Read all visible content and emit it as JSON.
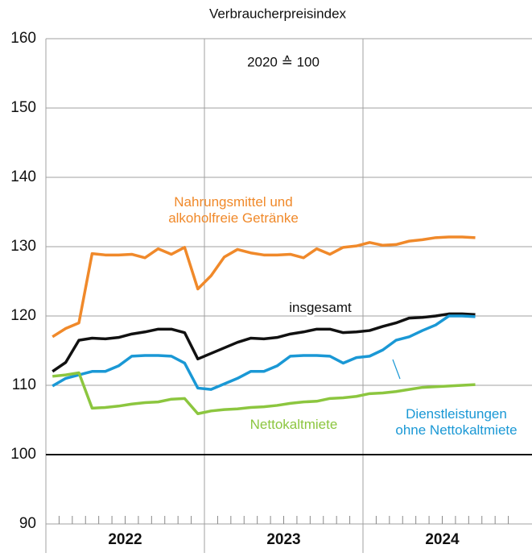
{
  "chart_data": {
    "type": "line",
    "title": "Verbraucherpreisindex",
    "annotation": "2020 ≙ 100",
    "categories": [
      null,
      null,
      null,
      null,
      null,
      null,
      null,
      null,
      null,
      null,
      null,
      null,
      null,
      null,
      null,
      null,
      null,
      null,
      null,
      null,
      null,
      null,
      null,
      null,
      null,
      null,
      null,
      null,
      null,
      null,
      null,
      null,
      null,
      null,
      null,
      null
    ],
    "x_groups": [
      "2022",
      "2023",
      "2024"
    ],
    "ylim": [
      90,
      160
    ],
    "yticks": [
      90,
      100,
      110,
      120,
      130,
      140,
      150,
      160
    ],
    "grid": true,
    "reference_line": 100,
    "series": [
      {
        "name": "Nahrungsmittel und\nalkoholfreie Getränke",
        "color": "#f0892a",
        "values": [
          117,
          118.2,
          119,
          129,
          128.8,
          128.8,
          128.9,
          128.4,
          129.7,
          128.9,
          129.9,
          123.9,
          125.8,
          128.5,
          129.6,
          129.1,
          128.8,
          128.8,
          128.9,
          128.4,
          129.7,
          128.9,
          129.9,
          130.1,
          130.6,
          130.2,
          130.3,
          130.8,
          131,
          131.3,
          131.4,
          131.4,
          131.3,
          null,
          null,
          null
        ]
      },
      {
        "name": "insgesamt",
        "color": "#111111",
        "values": [
          112,
          113.3,
          116.5,
          116.8,
          116.7,
          116.9,
          117.4,
          117.7,
          118.1,
          118.1,
          117.6,
          113.8,
          114.6,
          115.4,
          116.2,
          116.8,
          116.7,
          116.9,
          117.4,
          117.7,
          118.1,
          118.1,
          117.6,
          117.7,
          117.9,
          118.5,
          119,
          119.7,
          119.8,
          120,
          120.3,
          120.3,
          120.2,
          null,
          null,
          null
        ]
      },
      {
        "name": "Dienstleistungen\nohne Nettokaltmiete",
        "color": "#1a98d5",
        "values": [
          109.9,
          111,
          111.5,
          112,
          112,
          112.8,
          114.2,
          114.3,
          114.3,
          114.2,
          113.2,
          109.6,
          109.4,
          110.2,
          111,
          112,
          112,
          112.8,
          114.2,
          114.3,
          114.3,
          114.2,
          113.2,
          114,
          114.2,
          115.1,
          116.5,
          117,
          117.9,
          118.7,
          120,
          120,
          119.9,
          null,
          null,
          null
        ]
      },
      {
        "name": "Nettokaltmiete",
        "color": "#8cc63f",
        "values": [
          111.3,
          111.5,
          111.8,
          106.7,
          106.8,
          107,
          107.3,
          107.5,
          107.6,
          108,
          108.1,
          105.9,
          106.3,
          106.5,
          106.6,
          106.8,
          106.9,
          107.1,
          107.4,
          107.6,
          107.7,
          108.1,
          108.2,
          108.4,
          108.8,
          108.9,
          109.1,
          109.4,
          109.7,
          109.8,
          109.9,
          110,
          110.1,
          null,
          null,
          null
        ]
      }
    ]
  }
}
